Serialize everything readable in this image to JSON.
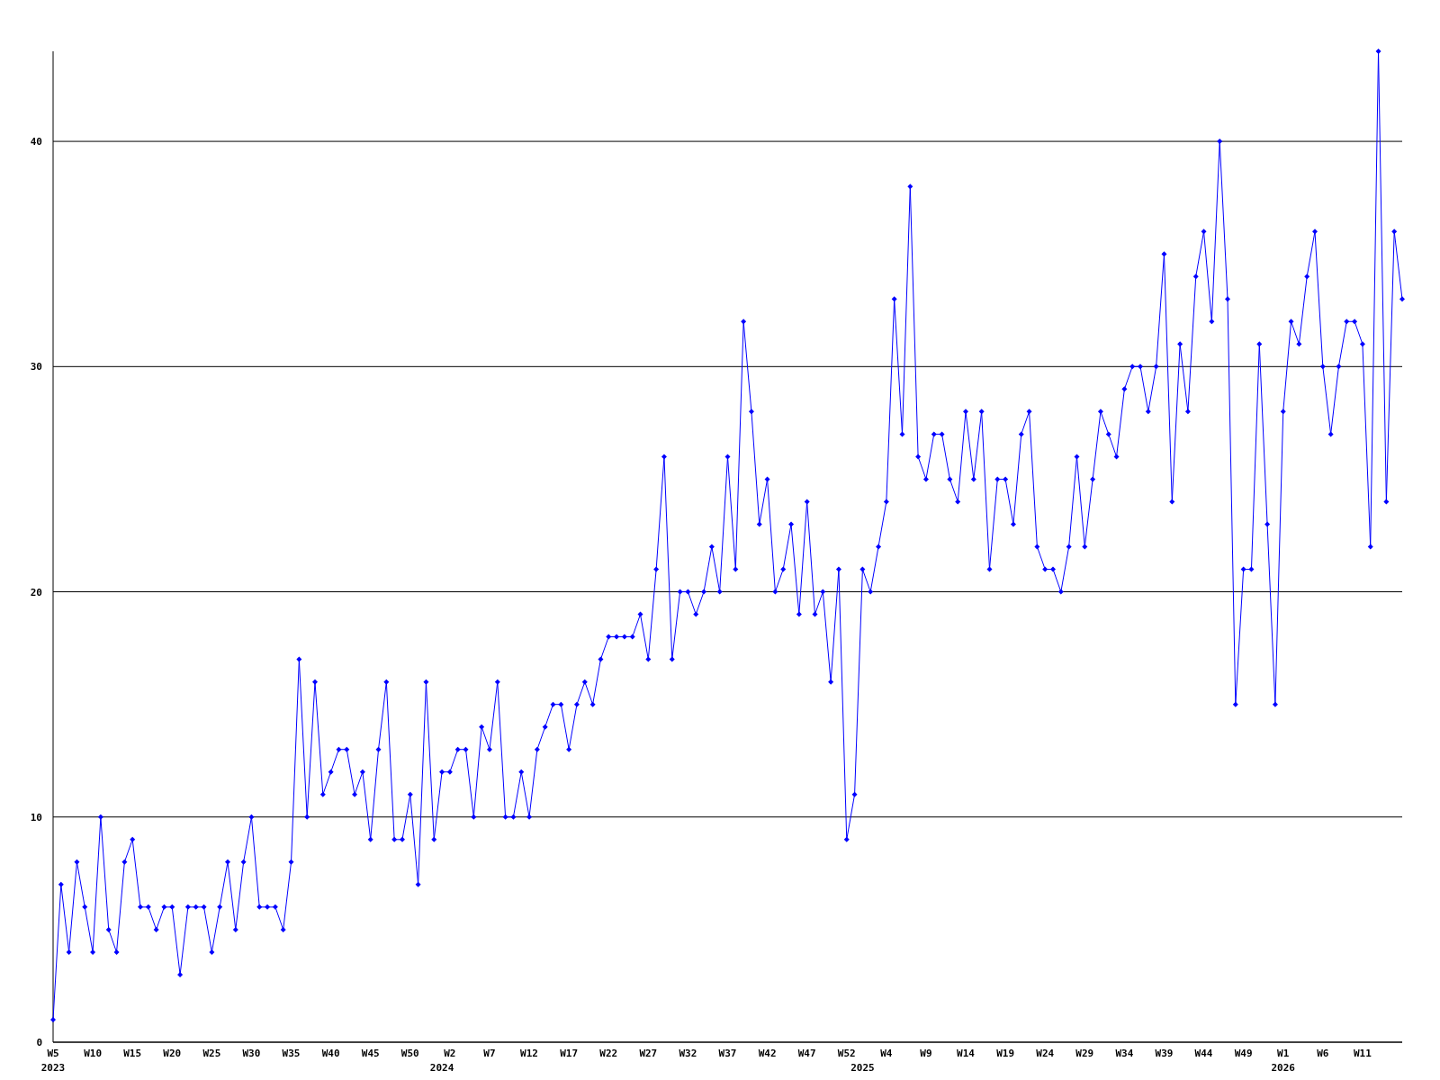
{
  "chart_data": {
    "type": "line",
    "categories": [
      "W5\n2023",
      null,
      null,
      null,
      null,
      "W10",
      null,
      null,
      null,
      null,
      "W15",
      null,
      null,
      null,
      null,
      "W20",
      null,
      null,
      null,
      null,
      "W25",
      null,
      null,
      null,
      null,
      "W30",
      null,
      null,
      null,
      null,
      "W35",
      null,
      null,
      null,
      null,
      "W40",
      null,
      null,
      null,
      null,
      "W45",
      null,
      null,
      null,
      null,
      "W50",
      null,
      null,
      null,
      "\n2024",
      "W2",
      null,
      null,
      null,
      null,
      "W7",
      null,
      null,
      null,
      null,
      "W12",
      null,
      null,
      null,
      null,
      "W17",
      null,
      null,
      null,
      null,
      "W22",
      null,
      null,
      null,
      null,
      "W27",
      null,
      null,
      null,
      null,
      "W32",
      null,
      null,
      null,
      null,
      "W37",
      null,
      null,
      null,
      null,
      "W42",
      null,
      null,
      null,
      null,
      "W47",
      null,
      null,
      null,
      null,
      "W52",
      null,
      "\n2025",
      null,
      null,
      "W4",
      null,
      null,
      null,
      null,
      "W9",
      null,
      null,
      null,
      null,
      "W14",
      null,
      null,
      null,
      null,
      "W19",
      null,
      null,
      null,
      null,
      "W24",
      null,
      null,
      null,
      null,
      "W29",
      null,
      null,
      null,
      null,
      "W34",
      null,
      null,
      null,
      null,
      "W39",
      null,
      null,
      null,
      null,
      "W44",
      null,
      null,
      null,
      null,
      "W49",
      null,
      null,
      null,
      null,
      "W1\n2026",
      null,
      null,
      null,
      null,
      "W6",
      null,
      null,
      null,
      null,
      "W11",
      null,
      null,
      null,
      null,
      null
    ],
    "series": [
      {
        "color": "#0000ff",
        "values": [
          1,
          7,
          4,
          8,
          6,
          4,
          10,
          5,
          4,
          8,
          9,
          6,
          6,
          5,
          6,
          6,
          3,
          6,
          6,
          6,
          4,
          6,
          8,
          5,
          8,
          10,
          6,
          6,
          6,
          5,
          8,
          17,
          10,
          16,
          11,
          12,
          13,
          13,
          11,
          12,
          9,
          13,
          16,
          9,
          9,
          11,
          7,
          16,
          9,
          12,
          12,
          13,
          13,
          10,
          14,
          13,
          16,
          10,
          10,
          12,
          10,
          13,
          14,
          15,
          15,
          13,
          15,
          16,
          15,
          17,
          18,
          18,
          18,
          18,
          19,
          17,
          21,
          26,
          17,
          20,
          20,
          19,
          20,
          22,
          20,
          26,
          21,
          32,
          28,
          23,
          25,
          20,
          21,
          23,
          19,
          24,
          19,
          20,
          16,
          21,
          9,
          11,
          21,
          20,
          22,
          24,
          33,
          27,
          38,
          26,
          25,
          27,
          27,
          25,
          24,
          28,
          25,
          28,
          21,
          25,
          25,
          23,
          27,
          28,
          22,
          21,
          21,
          20,
          22,
          26,
          22,
          25,
          28,
          27,
          26,
          29,
          30,
          30,
          28,
          30,
          35,
          24,
          31,
          28,
          34,
          36,
          32,
          40,
          33,
          15,
          21,
          21,
          31,
          23,
          15,
          28,
          32,
          31,
          34,
          36,
          30,
          27,
          30,
          32,
          32,
          31,
          22,
          44,
          24,
          36,
          33
        ]
      }
    ],
    "ylim": [
      0,
      44
    ],
    "yticks": [
      0,
      10,
      20,
      30,
      40
    ],
    "grid": "y",
    "marker": "diamond",
    "line_style": "solid"
  }
}
